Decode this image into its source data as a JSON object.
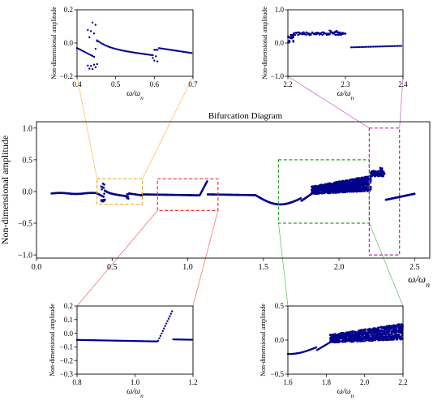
{
  "figure": {
    "title": "Bifurcation Diagram"
  },
  "chart_data": [
    {
      "id": "main",
      "type": "scatter",
      "title": "Bifurcation Diagram",
      "xlabel": "ω/ω",
      "xlabel_sub": "n",
      "ylabel": "Non-dimensional amplitude",
      "xlim": [
        0.0,
        2.6
      ],
      "ylim": [
        -1.05,
        1.1
      ],
      "xticks": [
        0.0,
        0.5,
        1.0,
        1.5,
        2.0,
        2.5
      ],
      "xtick_labels": [
        "0.0",
        "0.5",
        "1.0",
        "1.5",
        "2.0",
        "2.5"
      ],
      "yticks": [
        -1.0,
        -0.5,
        0.0,
        0.5,
        1.0
      ],
      "ytick_labels": [
        "−1.0",
        "−0.5",
        "0.0",
        "0.5",
        "1.0"
      ],
      "marker_color": "#00008b",
      "zoom_boxes": [
        {
          "x": [
            0.4,
            0.7
          ],
          "y": [
            -0.2,
            0.2
          ],
          "color": "#f5a623"
        },
        {
          "x": [
            0.8,
            1.2
          ],
          "y": [
            -0.3,
            0.2
          ],
          "color": "#e53935"
        },
        {
          "x": [
            1.6,
            2.2
          ],
          "y": [
            -0.5,
            0.5
          ],
          "color": "#2ca02c"
        },
        {
          "x": [
            2.2,
            2.4
          ],
          "y": [
            -1.0,
            1.0
          ],
          "color": "#b02cb0"
        }
      ]
    },
    {
      "id": "inset1",
      "type": "scatter",
      "xlabel": "ω/ω",
      "xlabel_sub": "n",
      "ylabel": "Non-dimensional amplitude",
      "xlim": [
        0.4,
        0.7
      ],
      "ylim": [
        -0.2,
        0.2
      ],
      "xticks": [
        0.4,
        0.5,
        0.6,
        0.7
      ],
      "xtick_labels": [
        "0.4",
        "0.5",
        "0.6",
        "0.7"
      ],
      "yticks": [
        -0.2,
        0.0,
        0.2
      ],
      "ytick_labels": [
        "−0.2",
        "0.0",
        "0.2"
      ]
    },
    {
      "id": "inset2",
      "type": "scatter",
      "xlabel": "ω/ω",
      "xlabel_sub": "n",
      "ylabel": "Non-dimensional amplitude",
      "xlim": [
        2.2,
        2.4
      ],
      "ylim": [
        -1.0,
        1.0
      ],
      "xticks": [
        2.2,
        2.3,
        2.4
      ],
      "xtick_labels": [
        "2.2",
        "2.3",
        "2.4"
      ],
      "yticks": [
        -1.0,
        0.0,
        1.0
      ],
      "ytick_labels": [
        "−1.0",
        "0.0",
        "1.0"
      ]
    },
    {
      "id": "inset3",
      "type": "scatter",
      "xlabel": "ω/ω",
      "xlabel_sub": "n",
      "ylabel": "Non-dimensional amplitude",
      "xlim": [
        0.8,
        1.2
      ],
      "ylim": [
        -0.3,
        0.2
      ],
      "xticks": [
        0.8,
        1.0,
        1.2
      ],
      "xtick_labels": [
        "0.8",
        "1.0",
        "1.2"
      ],
      "yticks": [
        -0.3,
        -0.2,
        -0.1,
        0.0,
        0.1,
        0.2
      ],
      "ytick_labels": [
        "−0.3",
        "−0.2",
        "−0.1",
        "0.0",
        "0.1",
        "0.2"
      ]
    },
    {
      "id": "inset4",
      "type": "scatter",
      "xlabel": "ω/ω",
      "xlabel_sub": "n",
      "ylabel": "Non-dimensional amplitude",
      "xlim": [
        1.6,
        2.2
      ],
      "ylim": [
        -0.5,
        0.5
      ],
      "xticks": [
        1.6,
        1.8,
        2.0,
        2.2
      ],
      "xtick_labels": [
        "1.6",
        "1.8",
        "2.0",
        "2.2"
      ],
      "yticks": [
        -0.5,
        0.0,
        0.5
      ],
      "ytick_labels": [
        "−0.5",
        "0.0",
        "0.5"
      ]
    }
  ]
}
